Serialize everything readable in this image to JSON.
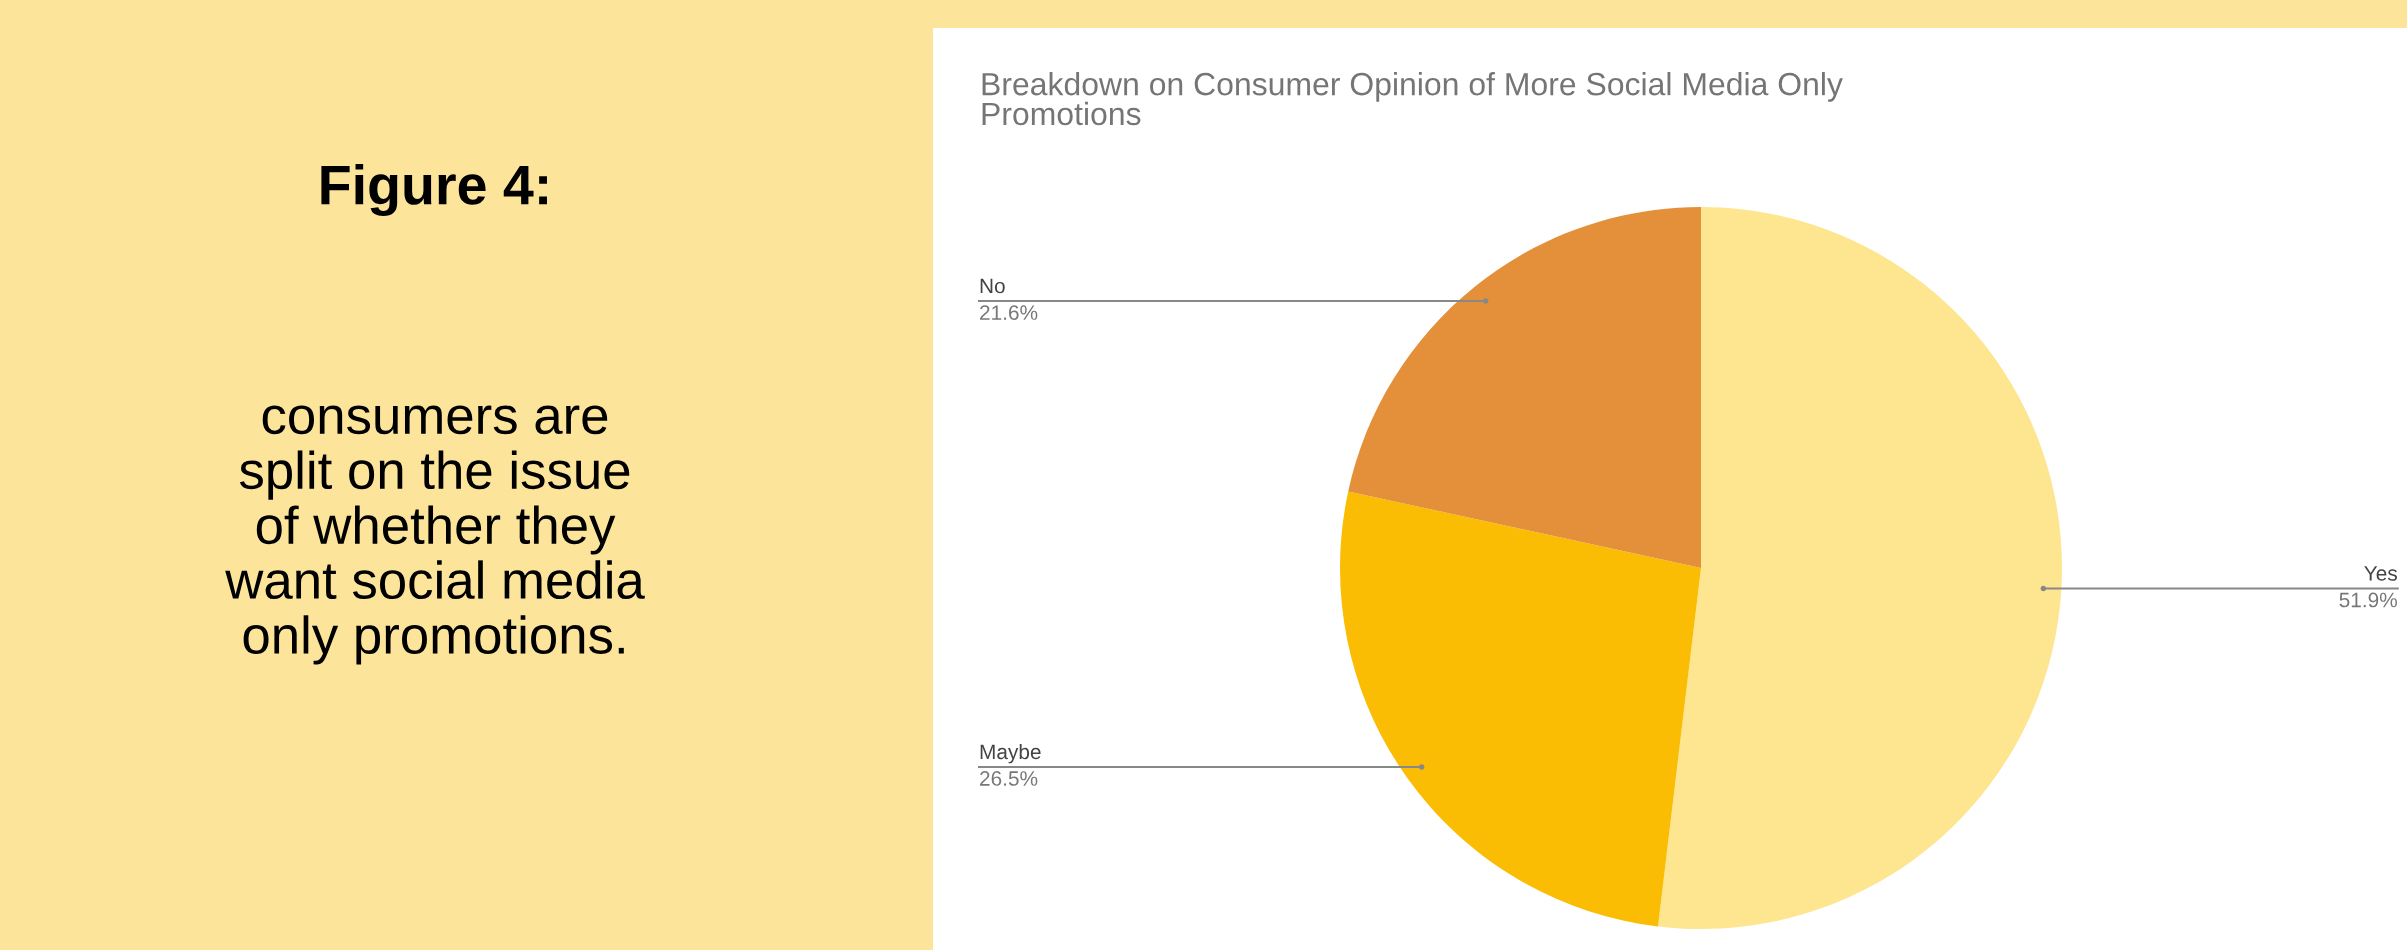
{
  "chart_data": {
    "type": "pie",
    "title": "Breakdown on Consumer Opinion of More Social Media Only\nPromotions",
    "categories": [
      "Yes",
      "Maybe",
      "No"
    ],
    "values": [
      51.9,
      26.5,
      21.6
    ],
    "value_labels": [
      "51.9%",
      "26.5%",
      "21.6%"
    ],
    "colors": [
      "#fde68f",
      "#fbbc04",
      "#e4903a"
    ],
    "annotations": [
      "Figure 4:",
      "consumers are\nsplit on the issue\nof whether they\nwant social media\nonly promotions."
    ]
  }
}
